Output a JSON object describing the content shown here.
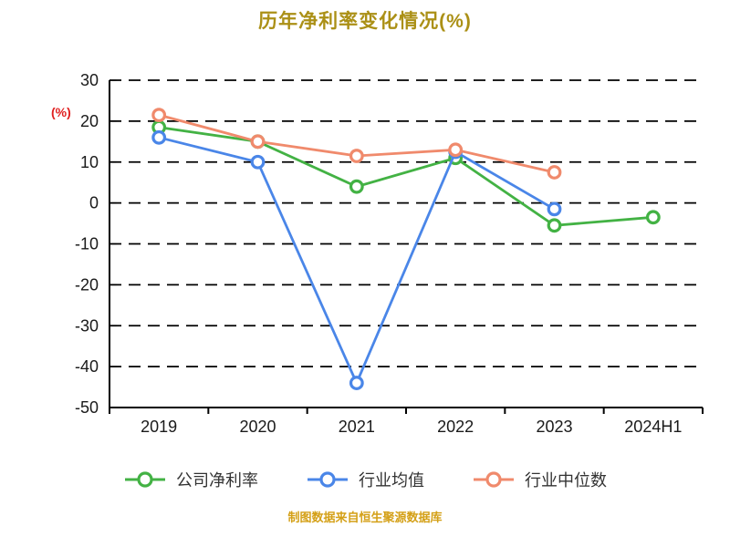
{
  "title": "历年净利率变化情况(%)",
  "footer": "制图数据来自恒生聚源数据库",
  "colors": {
    "title": "#ab9016",
    "footer": "#d4a017",
    "axis": "#000000",
    "grid": "#000000",
    "tick_label": "#1a1a1a",
    "ylabel": "#e02020",
    "background": "#ffffff"
  },
  "chart_data": {
    "type": "line",
    "title": "历年净利率变化情况(%)",
    "categories": [
      "2019",
      "2020",
      "2021",
      "2022",
      "2023",
      "2024H1"
    ],
    "series": [
      {
        "name": "公司净利率",
        "color": "#43b244",
        "values": [
          18.5,
          15,
          4,
          11,
          -5.5,
          -3.5
        ]
      },
      {
        "name": "行业均值",
        "color": "#4a86e8",
        "values": [
          16,
          10,
          -44,
          12.5,
          -1.5,
          null
        ]
      },
      {
        "name": "行业中位数",
        "color": "#f08a6c",
        "values": [
          21.5,
          15,
          11.5,
          13,
          7.5,
          null
        ]
      }
    ],
    "xlabel": "",
    "ylabel": "(%)",
    "ylim": [
      -50,
      30
    ],
    "yticks": [
      30,
      20,
      10,
      0,
      -10,
      -20,
      -30,
      -40,
      -50
    ],
    "grid": "horizontal dashed",
    "legend_position": "bottom",
    "marker": "open-circle"
  }
}
